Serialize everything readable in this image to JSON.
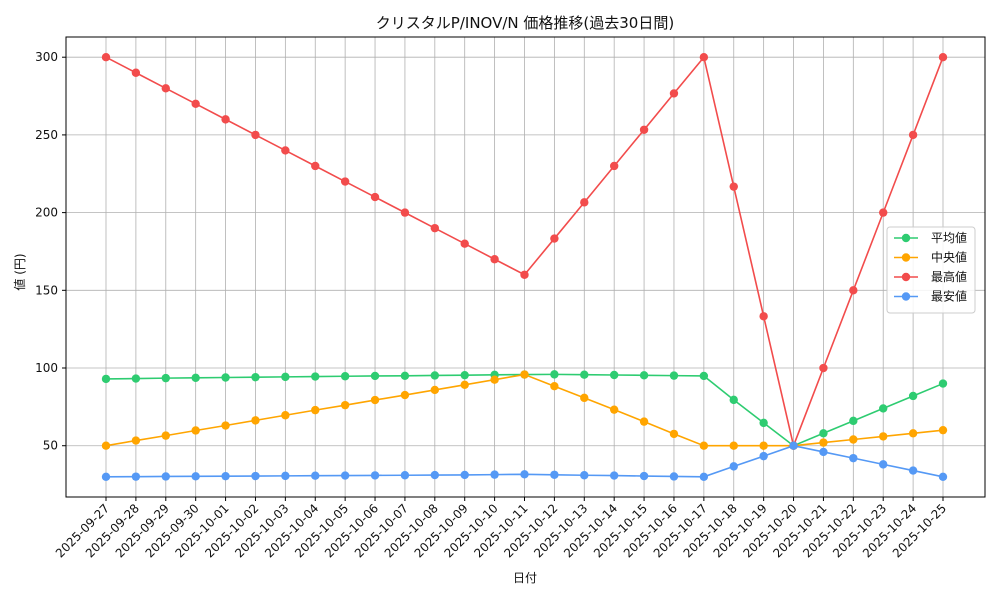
{
  "chart_data": {
    "type": "line",
    "title": "クリスタルP/INOV/N 価格推移(過去30日間)",
    "xlabel": "日付",
    "ylabel": "値 (円)",
    "ylim": [
      17,
      313
    ],
    "yticks": [
      50,
      100,
      150,
      200,
      250,
      300
    ],
    "grid": true,
    "legend_position": "right",
    "categories": [
      "2025-09-27",
      "2025-09-28",
      "2025-09-29",
      "2025-09-30",
      "2025-10-01",
      "2025-10-02",
      "2025-10-03",
      "2025-10-04",
      "2025-10-05",
      "2025-10-06",
      "2025-10-07",
      "2025-10-08",
      "2025-10-09",
      "2025-10-10",
      "2025-10-11",
      "2025-10-12",
      "2025-10-13",
      "2025-10-14",
      "2025-10-15",
      "2025-10-16",
      "2025-10-17",
      "2025-10-18",
      "2025-10-19",
      "2025-10-20",
      "2025-10-21",
      "2025-10-22",
      "2025-10-23",
      "2025-10-24",
      "2025-10-25"
    ],
    "series": [
      {
        "name": "平均値",
        "color": "#2ecc71",
        "values": [
          93,
          93.2,
          93.5,
          93.7,
          93.9,
          94.1,
          94.3,
          94.5,
          94.7,
          94.9,
          95,
          95.2,
          95.4,
          95.6,
          95.8,
          95.9,
          95.7,
          95.5,
          95.3,
          95.1,
          94.9,
          79.5,
          64.7,
          50,
          58,
          66,
          74,
          82,
          90
        ]
      },
      {
        "name": "中央値",
        "color": "#ffa500",
        "values": [
          50,
          53.3,
          56.5,
          59.8,
          63,
          66.3,
          69.6,
          72.9,
          76.1,
          79.4,
          82.6,
          85.9,
          89.2,
          92.5,
          95.8,
          88.3,
          80.8,
          73.2,
          65.5,
          57.6,
          50,
          50,
          50,
          50,
          52,
          54,
          56,
          58,
          60
        ]
      },
      {
        "name": "最高値",
        "color": "#f24c4c",
        "values": [
          300,
          290,
          280,
          270,
          260,
          250,
          240,
          230,
          220,
          210,
          200,
          190,
          180,
          170,
          160,
          183.3,
          206.6,
          230,
          253.3,
          276.7,
          300,
          216.7,
          133.3,
          50,
          100,
          150,
          200,
          250,
          300
        ]
      },
      {
        "name": "最安値",
        "color": "#5599f5",
        "values": [
          30,
          30.1,
          30.2,
          30.3,
          30.4,
          30.5,
          30.6,
          30.7,
          30.8,
          30.9,
          31,
          31.1,
          31.2,
          31.4,
          31.6,
          31.3,
          31,
          30.8,
          30.5,
          30.2,
          30,
          36.7,
          43.3,
          50,
          46,
          42,
          38,
          34,
          30
        ]
      }
    ]
  }
}
